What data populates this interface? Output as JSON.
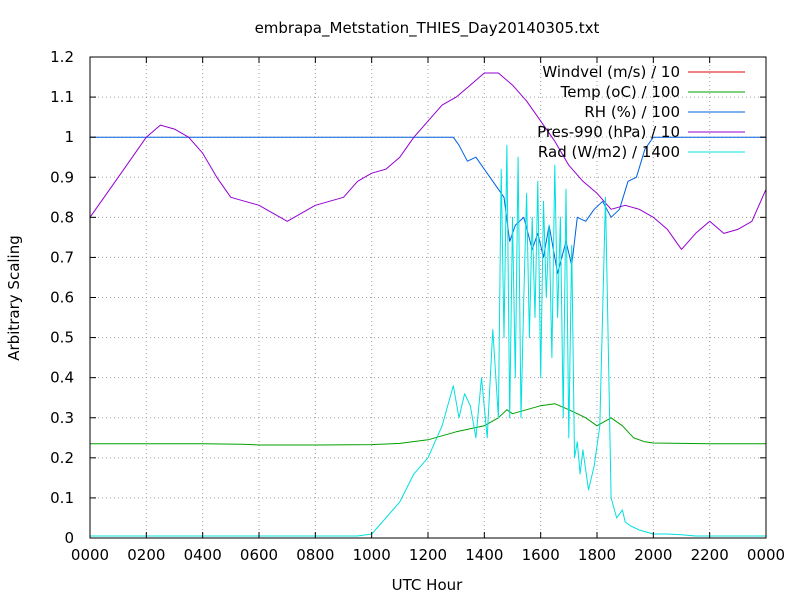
{
  "chart_data": {
    "type": "line",
    "title": "embrapa_Metstation_THIES_Day20140305.txt",
    "xlabel": "UTC Hour",
    "ylabel": "Arbitrary Scaling",
    "xlim": [
      0,
      24
    ],
    "ylim": [
      0,
      1.2
    ],
    "grid": true,
    "legend_position": "top-right",
    "x_ticks": [
      0,
      2,
      4,
      6,
      8,
      10,
      12,
      14,
      16,
      18,
      20,
      22,
      24
    ],
    "x_tick_labels": [
      "0000",
      "0200",
      "0400",
      "0600",
      "0800",
      "1000",
      "1200",
      "1400",
      "1600",
      "1800",
      "2000",
      "2200",
      "0000"
    ],
    "y_ticks": [
      0,
      0.1,
      0.2,
      0.3,
      0.4,
      0.5,
      0.6,
      0.7,
      0.8,
      0.9,
      1,
      1.1,
      1.2
    ],
    "y_tick_labels": [
      "0",
      "0.1",
      "0.2",
      "0.3",
      "0.4",
      "0.5",
      "0.6",
      "0.7",
      "0.8",
      "0.9",
      "1",
      "1.1",
      "1.2"
    ],
    "series": [
      {
        "name": "Windvel (m/s) / 10",
        "color": "#e00000",
        "x": [],
        "y": []
      },
      {
        "name": "Temp (oC) / 100",
        "color": "#00a000",
        "x": [
          0,
          2,
          4,
          5.4,
          6,
          8,
          10,
          11,
          12,
          13,
          14,
          14.5,
          14.8,
          15,
          15.5,
          16,
          16.5,
          17,
          17.3,
          17.6,
          18,
          18.5,
          18.9,
          19.3,
          19.7,
          20,
          22,
          24
        ],
        "y": [
          0.235,
          0.235,
          0.235,
          0.234,
          0.232,
          0.232,
          0.233,
          0.236,
          0.245,
          0.265,
          0.28,
          0.3,
          0.32,
          0.31,
          0.32,
          0.33,
          0.335,
          0.32,
          0.31,
          0.3,
          0.28,
          0.3,
          0.28,
          0.25,
          0.24,
          0.237,
          0.235,
          0.235
        ]
      },
      {
        "name": "RH (%) / 100",
        "color": "#0060e0",
        "x": [
          0,
          12.9,
          13.1,
          13.4,
          13.7,
          14,
          14.3,
          14.7,
          14.9,
          15.1,
          15.4,
          15.7,
          15.9,
          16.1,
          16.3,
          16.6,
          16.9,
          17.1,
          17.3,
          17.6,
          17.9,
          18.2,
          18.5,
          18.8,
          19.1,
          19.4,
          19.7,
          20,
          24
        ],
        "y": [
          1.0,
          1.0,
          0.98,
          0.94,
          0.95,
          0.92,
          0.89,
          0.85,
          0.74,
          0.78,
          0.8,
          0.72,
          0.76,
          0.7,
          0.78,
          0.66,
          0.74,
          0.68,
          0.8,
          0.79,
          0.82,
          0.84,
          0.8,
          0.82,
          0.89,
          0.9,
          0.97,
          1.0,
          1.0
        ]
      },
      {
        "name": "Pres-990 (hPa) / 10",
        "color": "#9400d3",
        "x": [
          0,
          0.5,
          1,
          1.5,
          2,
          2.5,
          3,
          3.5,
          4,
          4.5,
          5,
          5.5,
          6,
          6.5,
          7,
          7.5,
          8,
          8.5,
          9,
          9.5,
          10,
          10.5,
          11,
          11.5,
          12,
          12.5,
          13,
          13.5,
          14,
          14.5,
          15,
          15.5,
          16,
          16.5,
          17,
          17.5,
          18,
          18.5,
          19,
          19.5,
          20,
          20.5,
          21,
          21.5,
          22,
          22.5,
          23,
          23.5,
          24
        ],
        "y": [
          0.8,
          0.85,
          0.9,
          0.95,
          1.0,
          1.03,
          1.02,
          1.0,
          0.96,
          0.9,
          0.85,
          0.84,
          0.83,
          0.81,
          0.79,
          0.81,
          0.83,
          0.84,
          0.85,
          0.89,
          0.91,
          0.92,
          0.95,
          1.0,
          1.04,
          1.08,
          1.1,
          1.13,
          1.16,
          1.16,
          1.13,
          1.09,
          1.04,
          0.99,
          0.93,
          0.89,
          0.86,
          0.82,
          0.83,
          0.82,
          0.8,
          0.77,
          0.72,
          0.76,
          0.79,
          0.76,
          0.77,
          0.79,
          0.87
        ]
      },
      {
        "name": "Rad (W/m2) / 1400",
        "color": "#00e0e0",
        "x": [
          0,
          9.5,
          10,
          10.5,
          11,
          11.5,
          12,
          12.5,
          12.9,
          13.1,
          13.3,
          13.5,
          13.7,
          13.9,
          14.1,
          14.3,
          14.5,
          14.6,
          14.7,
          14.8,
          14.9,
          15.0,
          15.1,
          15.2,
          15.3,
          15.4,
          15.5,
          15.6,
          15.7,
          15.8,
          15.9,
          16.0,
          16.1,
          16.2,
          16.3,
          16.4,
          16.5,
          16.6,
          16.7,
          16.8,
          16.9,
          17.0,
          17.1,
          17.2,
          17.3,
          17.4,
          17.5,
          17.7,
          17.9,
          18.1,
          18.3,
          18.5,
          18.7,
          18.9,
          19.0,
          19.2,
          19.5,
          20,
          20.5,
          21,
          21.5,
          22,
          24
        ],
        "y": [
          0.005,
          0.005,
          0.01,
          0.05,
          0.09,
          0.16,
          0.2,
          0.28,
          0.38,
          0.3,
          0.36,
          0.33,
          0.25,
          0.4,
          0.25,
          0.52,
          0.3,
          0.92,
          0.5,
          0.98,
          0.3,
          0.8,
          0.4,
          0.95,
          0.3,
          0.6,
          0.86,
          0.5,
          0.8,
          0.55,
          0.89,
          0.4,
          0.84,
          0.6,
          0.78,
          0.45,
          0.93,
          0.55,
          0.8,
          0.3,
          0.87,
          0.25,
          0.73,
          0.2,
          0.24,
          0.16,
          0.22,
          0.12,
          0.18,
          0.28,
          0.85,
          0.1,
          0.05,
          0.07,
          0.04,
          0.03,
          0.02,
          0.01,
          0.01,
          0.008,
          0.005,
          0.005,
          0.005
        ]
      }
    ]
  }
}
